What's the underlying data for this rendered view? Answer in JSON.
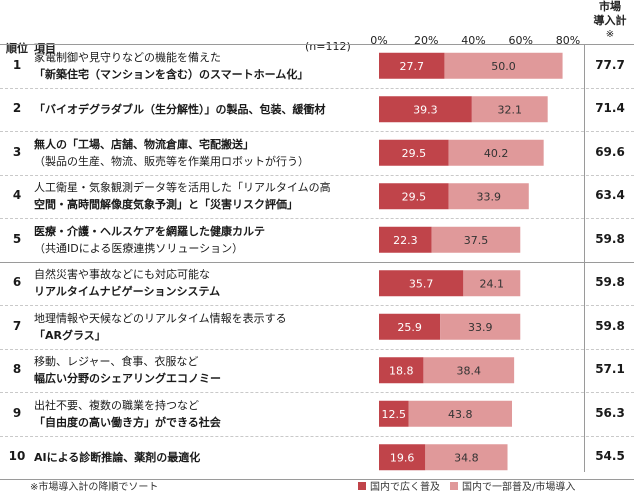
{
  "header": {
    "rank_label": "順位",
    "item_label": "項目",
    "n_label": "(n=112)",
    "market_label_line1": "市場",
    "market_label_line2": "導入計",
    "market_label_line3": "※"
  },
  "footer": {
    "note": "※市場導入計の降順でソート",
    "legend": [
      "国内で広く普及",
      "国内で一部普及/市場導入"
    ]
  },
  "colors": {
    "series1": "#c0444a",
    "series2": "#e0999a",
    "series1_text": "#ffffff",
    "series2_text": "#333333"
  },
  "rows": [
    {
      "rank": "1",
      "lines": [
        {
          "text": "家電制御や見守りなどの機能を備えた",
          "bold": false
        },
        {
          "text": "「新築住宅（マンションを含む）のスマートホーム化」",
          "bold": true
        }
      ],
      "total": "77.7"
    },
    {
      "rank": "2",
      "lines": [
        {
          "text": "「バイオデグラダブル（生分解性）」の製品、包装、緩衝材",
          "bold": true
        }
      ],
      "total": "71.4"
    },
    {
      "rank": "3",
      "lines": [
        {
          "text": "無人の「工場、店舗、物流倉庫、宅配搬送」",
          "bold": true
        },
        {
          "text": "（製品の生産、物流、販売等を作業用ロボットが行う）",
          "bold": false
        }
      ],
      "total": "69.6"
    },
    {
      "rank": "4",
      "lines": [
        {
          "text": "人工衛星・気象観測データ等を活用した「リアルタイムの高",
          "bold": false
        },
        {
          "text": "空間・高時間解像度気象予測」と「災害リスク評価」",
          "bold": true
        }
      ],
      "total": "63.4"
    },
    {
      "rank": "5",
      "lines": [
        {
          "text": "医療・介護・ヘルスケアを網羅した健康カルテ",
          "bold": true
        },
        {
          "text": "（共通IDによる医療連携ソリューション）",
          "bold": false
        }
      ],
      "total": "59.8"
    },
    {
      "rank": "6",
      "lines": [
        {
          "text": "自然災害や事故などにも対応可能な",
          "bold": false
        },
        {
          "text": "リアルタイムナビゲーションシステム",
          "bold": true
        }
      ],
      "total": "59.8"
    },
    {
      "rank": "7",
      "lines": [
        {
          "text": "地理情報や天候などのリアルタイム情報を表示する",
          "bold": false
        },
        {
          "text": "「ARグラス」",
          "bold": true
        }
      ],
      "total": "59.8"
    },
    {
      "rank": "8",
      "lines": [
        {
          "text": "移動、レジャー、食事、衣服など",
          "bold": false
        },
        {
          "text": "幅広い分野のシェアリングエコノミー",
          "bold": true
        }
      ],
      "total": "57.1"
    },
    {
      "rank": "9",
      "lines": [
        {
          "text": "出社不要、複数の職業を持つなど",
          "bold": false
        },
        {
          "text": "「自由度の高い働き方」ができる社会",
          "bold": true
        }
      ],
      "total": "56.3"
    },
    {
      "rank": "10",
      "lines": [
        {
          "text": "AIによる診断推論、薬剤の最適化",
          "bold": true
        }
      ],
      "total": "54.5"
    }
  ],
  "chart_data": {
    "type": "bar",
    "orientation": "horizontal",
    "stacked": true,
    "categories": [
      "1",
      "2",
      "3",
      "4",
      "5",
      "6",
      "7",
      "8",
      "9",
      "10"
    ],
    "series": [
      {
        "name": "国内で広く普及",
        "values": [
          27.7,
          39.3,
          29.5,
          29.5,
          22.3,
          35.7,
          25.9,
          18.8,
          12.5,
          19.6
        ]
      },
      {
        "name": "国内で一部普及/市場導入",
        "values": [
          50.0,
          32.1,
          40.2,
          33.9,
          37.5,
          24.1,
          33.9,
          38.4,
          43.8,
          34.8
        ]
      }
    ],
    "xlim": [
      0,
      80
    ],
    "xticks": [
      "0%",
      "20%",
      "40%",
      "60%",
      "80%"
    ],
    "legend_position": "bottom-right"
  }
}
